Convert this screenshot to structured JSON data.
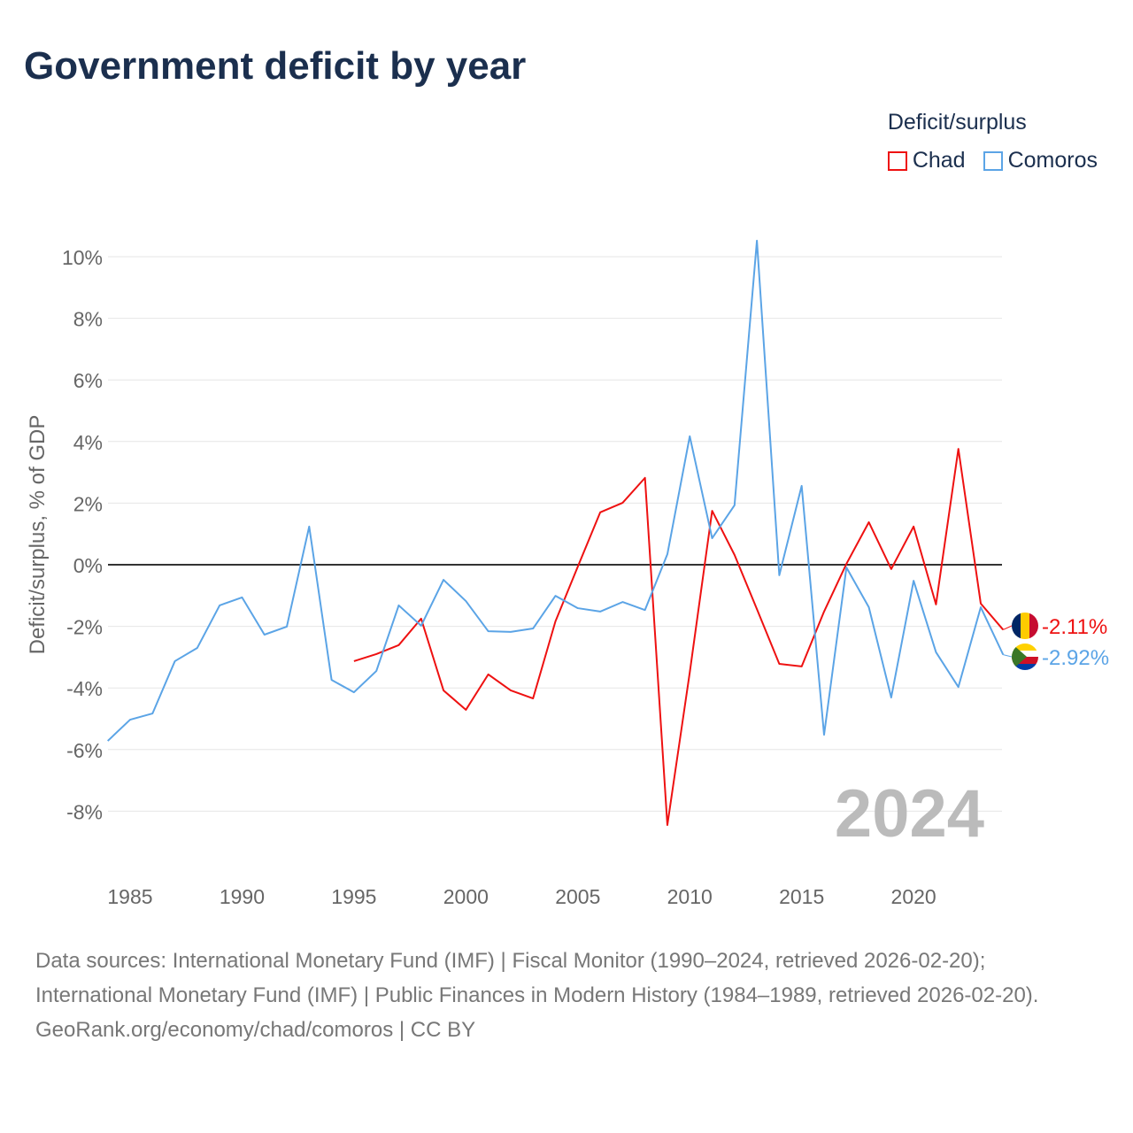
{
  "title": "Government deficit by year",
  "legend": {
    "title": "Deficit/surplus",
    "items": [
      {
        "name": "Chad",
        "color": "#ee1111"
      },
      {
        "name": "Comoros",
        "color": "#5ba4e6"
      }
    ]
  },
  "chart_data": {
    "type": "line",
    "title": "Government deficit by year",
    "xlabel": "",
    "ylabel": "Deficit/surplus, % of GDP",
    "xlim": [
      1984,
      2024
    ],
    "ylim": [
      -9.5,
      11
    ],
    "x_ticks": [
      1985,
      1990,
      1995,
      2000,
      2005,
      2010,
      2015,
      2020
    ],
    "y_ticks": [
      -8,
      -6,
      -4,
      -2,
      0,
      2,
      4,
      6,
      8,
      10
    ],
    "y_tick_labels": [
      "-8%",
      "-6%",
      "-4%",
      "-2%",
      "0%",
      "2%",
      "4%",
      "6%",
      "8%",
      "10%"
    ],
    "grid": true,
    "legend_position": "top-right",
    "year_label": "2024",
    "series": [
      {
        "name": "Chad",
        "color": "#ee1111",
        "end_label": "-2.11%",
        "x": [
          1995,
          1996,
          1997,
          1998,
          1999,
          2000,
          2001,
          2002,
          2003,
          2004,
          2005,
          2006,
          2007,
          2008,
          2009,
          2010,
          2011,
          2012,
          2013,
          2014,
          2015,
          2016,
          2017,
          2018,
          2019,
          2020,
          2021,
          2022,
          2023,
          2024
        ],
        "values": [
          -3.13,
          -2.9,
          -2.61,
          -1.75,
          -4.08,
          -4.71,
          -3.56,
          -4.08,
          -4.34,
          -1.84,
          -0.06,
          1.7,
          2.01,
          2.82,
          -8.45,
          -3.5,
          1.75,
          0.32,
          -1.44,
          -3.22,
          -3.3,
          -1.52,
          0.03,
          1.38,
          -0.14,
          1.24,
          -1.29,
          3.76,
          -1.26,
          -2.11
        ]
      },
      {
        "name": "Comoros",
        "color": "#5ba4e6",
        "end_label": "-2.92%",
        "x": [
          1984,
          1985,
          1986,
          1987,
          1988,
          1989,
          1990,
          1991,
          1992,
          1993,
          1994,
          1995,
          1996,
          1997,
          1998,
          1999,
          2000,
          2001,
          2002,
          2003,
          2004,
          2005,
          2006,
          2007,
          2008,
          2009,
          2010,
          2011,
          2012,
          2013,
          2014,
          2015,
          2016,
          2017,
          2018,
          2019,
          2020,
          2021,
          2022,
          2023,
          2024
        ],
        "values": [
          -5.72,
          -5.03,
          -4.83,
          -3.13,
          -2.7,
          -1.32,
          -1.06,
          -2.27,
          -2.01,
          1.24,
          -3.74,
          -4.14,
          -3.45,
          -1.32,
          -1.98,
          -0.49,
          -1.18,
          -2.16,
          -2.18,
          -2.07,
          -1.01,
          -1.41,
          -1.52,
          -1.21,
          -1.47,
          0.34,
          4.17,
          0.86,
          1.93,
          10.52,
          -0.34,
          2.56,
          -5.52,
          -0.09,
          -1.38,
          -4.31,
          -0.52,
          -2.84,
          -3.97,
          -1.38,
          -2.92
        ]
      }
    ]
  },
  "footer": {
    "sources": "Data sources: International Monetary Fund (IMF) | Fiscal Monitor (1990–2024, retrieved 2026-02-20); International Monetary Fund (IMF) | Public Finances in Modern History (1984–1989, retrieved 2026-02-20).",
    "link": "GeoRank.org/economy/chad/comoros | CC BY"
  }
}
